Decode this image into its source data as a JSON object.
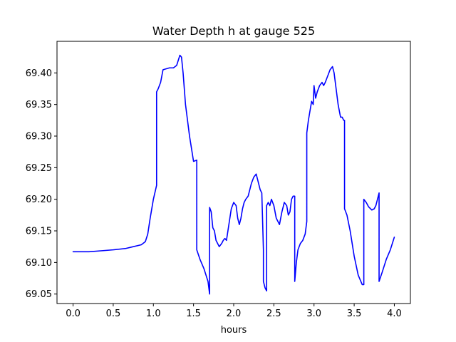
{
  "chart_data": {
    "type": "line",
    "title": "Water Depth h at gauge 525",
    "xlabel": "hours",
    "ylabel": "",
    "xlim": [
      -0.2,
      4.2
    ],
    "ylim": [
      69.035,
      69.45
    ],
    "xticks": [
      0.0,
      0.5,
      1.0,
      1.5,
      2.0,
      2.5,
      3.0,
      3.5,
      4.0
    ],
    "xtick_labels": [
      "0.0",
      "0.5",
      "1.0",
      "1.5",
      "2.0",
      "2.5",
      "3.0",
      "3.5",
      "4.0"
    ],
    "yticks": [
      69.05,
      69.1,
      69.15,
      69.2,
      69.25,
      69.3,
      69.35,
      69.4
    ],
    "ytick_labels": [
      "69.05",
      "69.10",
      "69.15",
      "69.20",
      "69.25",
      "69.30",
      "69.35",
      "69.40"
    ],
    "grid": false,
    "line_color": "#0000ff",
    "series": [
      {
        "x": [
          0.0,
          0.2,
          0.5,
          0.65,
          0.75,
          0.85,
          0.9,
          0.93,
          0.96,
          1.0,
          1.04,
          1.04,
          1.06,
          1.09,
          1.12,
          1.2,
          1.25,
          1.29,
          1.31,
          1.33,
          1.35,
          1.37,
          1.4,
          1.45,
          1.5,
          1.54,
          1.54,
          1.58,
          1.63,
          1.68,
          1.7,
          1.7,
          1.72,
          1.74,
          1.76,
          1.78,
          1.8,
          1.82,
          1.85,
          1.87,
          1.89,
          1.91,
          1.94,
          1.97,
          2.0,
          2.03,
          2.05,
          2.07,
          2.09,
          2.11,
          2.13,
          2.15,
          2.18,
          2.2,
          2.22,
          2.25,
          2.28,
          2.3,
          2.33,
          2.35,
          2.37,
          2.37,
          2.39,
          2.41,
          2.41,
          2.43,
          2.45,
          2.47,
          2.5,
          2.53,
          2.57,
          2.6,
          2.63,
          2.66,
          2.68,
          2.7,
          2.72,
          2.74,
          2.76,
          2.76,
          2.78,
          2.8,
          2.83,
          2.86,
          2.89,
          2.91,
          2.91,
          2.93,
          2.95,
          2.97,
          2.99,
          3.0,
          3.02,
          3.04,
          3.07,
          3.1,
          3.12,
          3.14,
          3.17,
          3.2,
          3.23,
          3.25,
          3.28,
          3.3,
          3.33,
          3.35,
          3.37,
          3.38,
          3.38,
          3.41,
          3.45,
          3.5,
          3.55,
          3.6,
          3.62,
          3.62,
          3.65,
          3.68,
          3.72,
          3.75,
          3.77,
          3.79,
          3.81,
          3.81,
          3.85,
          3.9,
          3.95,
          4.0
        ],
        "y": [
          69.117,
          69.117,
          69.12,
          69.122,
          69.125,
          69.128,
          69.133,
          69.145,
          69.17,
          69.2,
          69.222,
          69.37,
          69.375,
          69.385,
          69.405,
          69.408,
          69.408,
          69.412,
          69.42,
          69.428,
          69.425,
          69.4,
          69.35,
          69.3,
          69.26,
          69.262,
          69.12,
          69.105,
          69.09,
          69.07,
          69.05,
          69.187,
          69.18,
          69.155,
          69.15,
          69.135,
          69.13,
          69.125,
          69.13,
          69.135,
          69.138,
          69.135,
          69.16,
          69.185,
          69.195,
          69.19,
          69.17,
          69.16,
          69.17,
          69.185,
          69.195,
          69.2,
          69.205,
          69.215,
          69.225,
          69.235,
          69.24,
          69.23,
          69.215,
          69.21,
          69.12,
          69.07,
          69.06,
          69.055,
          69.19,
          69.195,
          69.19,
          69.2,
          69.19,
          69.17,
          69.16,
          69.18,
          69.195,
          69.19,
          69.175,
          69.18,
          69.2,
          69.205,
          69.205,
          69.07,
          69.1,
          69.12,
          69.13,
          69.135,
          69.145,
          69.165,
          69.305,
          69.325,
          69.34,
          69.355,
          69.35,
          69.38,
          69.36,
          69.37,
          69.38,
          69.385,
          69.38,
          69.385,
          69.395,
          69.405,
          69.41,
          69.4,
          69.37,
          69.35,
          69.33,
          69.33,
          69.325,
          69.325,
          69.185,
          69.175,
          69.15,
          69.11,
          69.08,
          69.065,
          69.065,
          69.2,
          69.195,
          69.188,
          69.183,
          69.185,
          69.19,
          69.2,
          69.21,
          69.07,
          69.085,
          69.105,
          69.12,
          69.14
        ]
      }
    ]
  }
}
